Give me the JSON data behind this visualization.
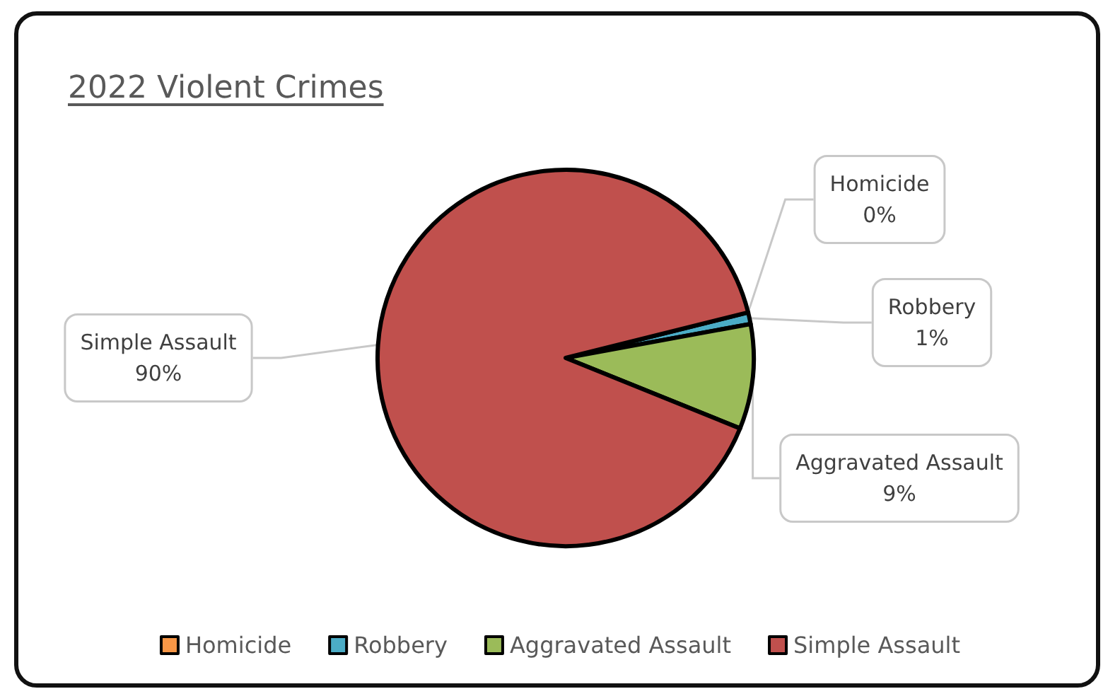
{
  "chart_data": {
    "type": "pie",
    "title": "2022 Violent Crimes",
    "categories": [
      "Homicide",
      "Robbery",
      "Aggravated Assault",
      "Simple Assault"
    ],
    "values": [
      0,
      1,
      9,
      90
    ],
    "value_labels": [
      "0%",
      "1%",
      "9%",
      "90%"
    ],
    "colors": [
      "#f79646",
      "#4bacc6",
      "#9bbb59",
      "#c0504d"
    ],
    "legend": "bottom"
  }
}
